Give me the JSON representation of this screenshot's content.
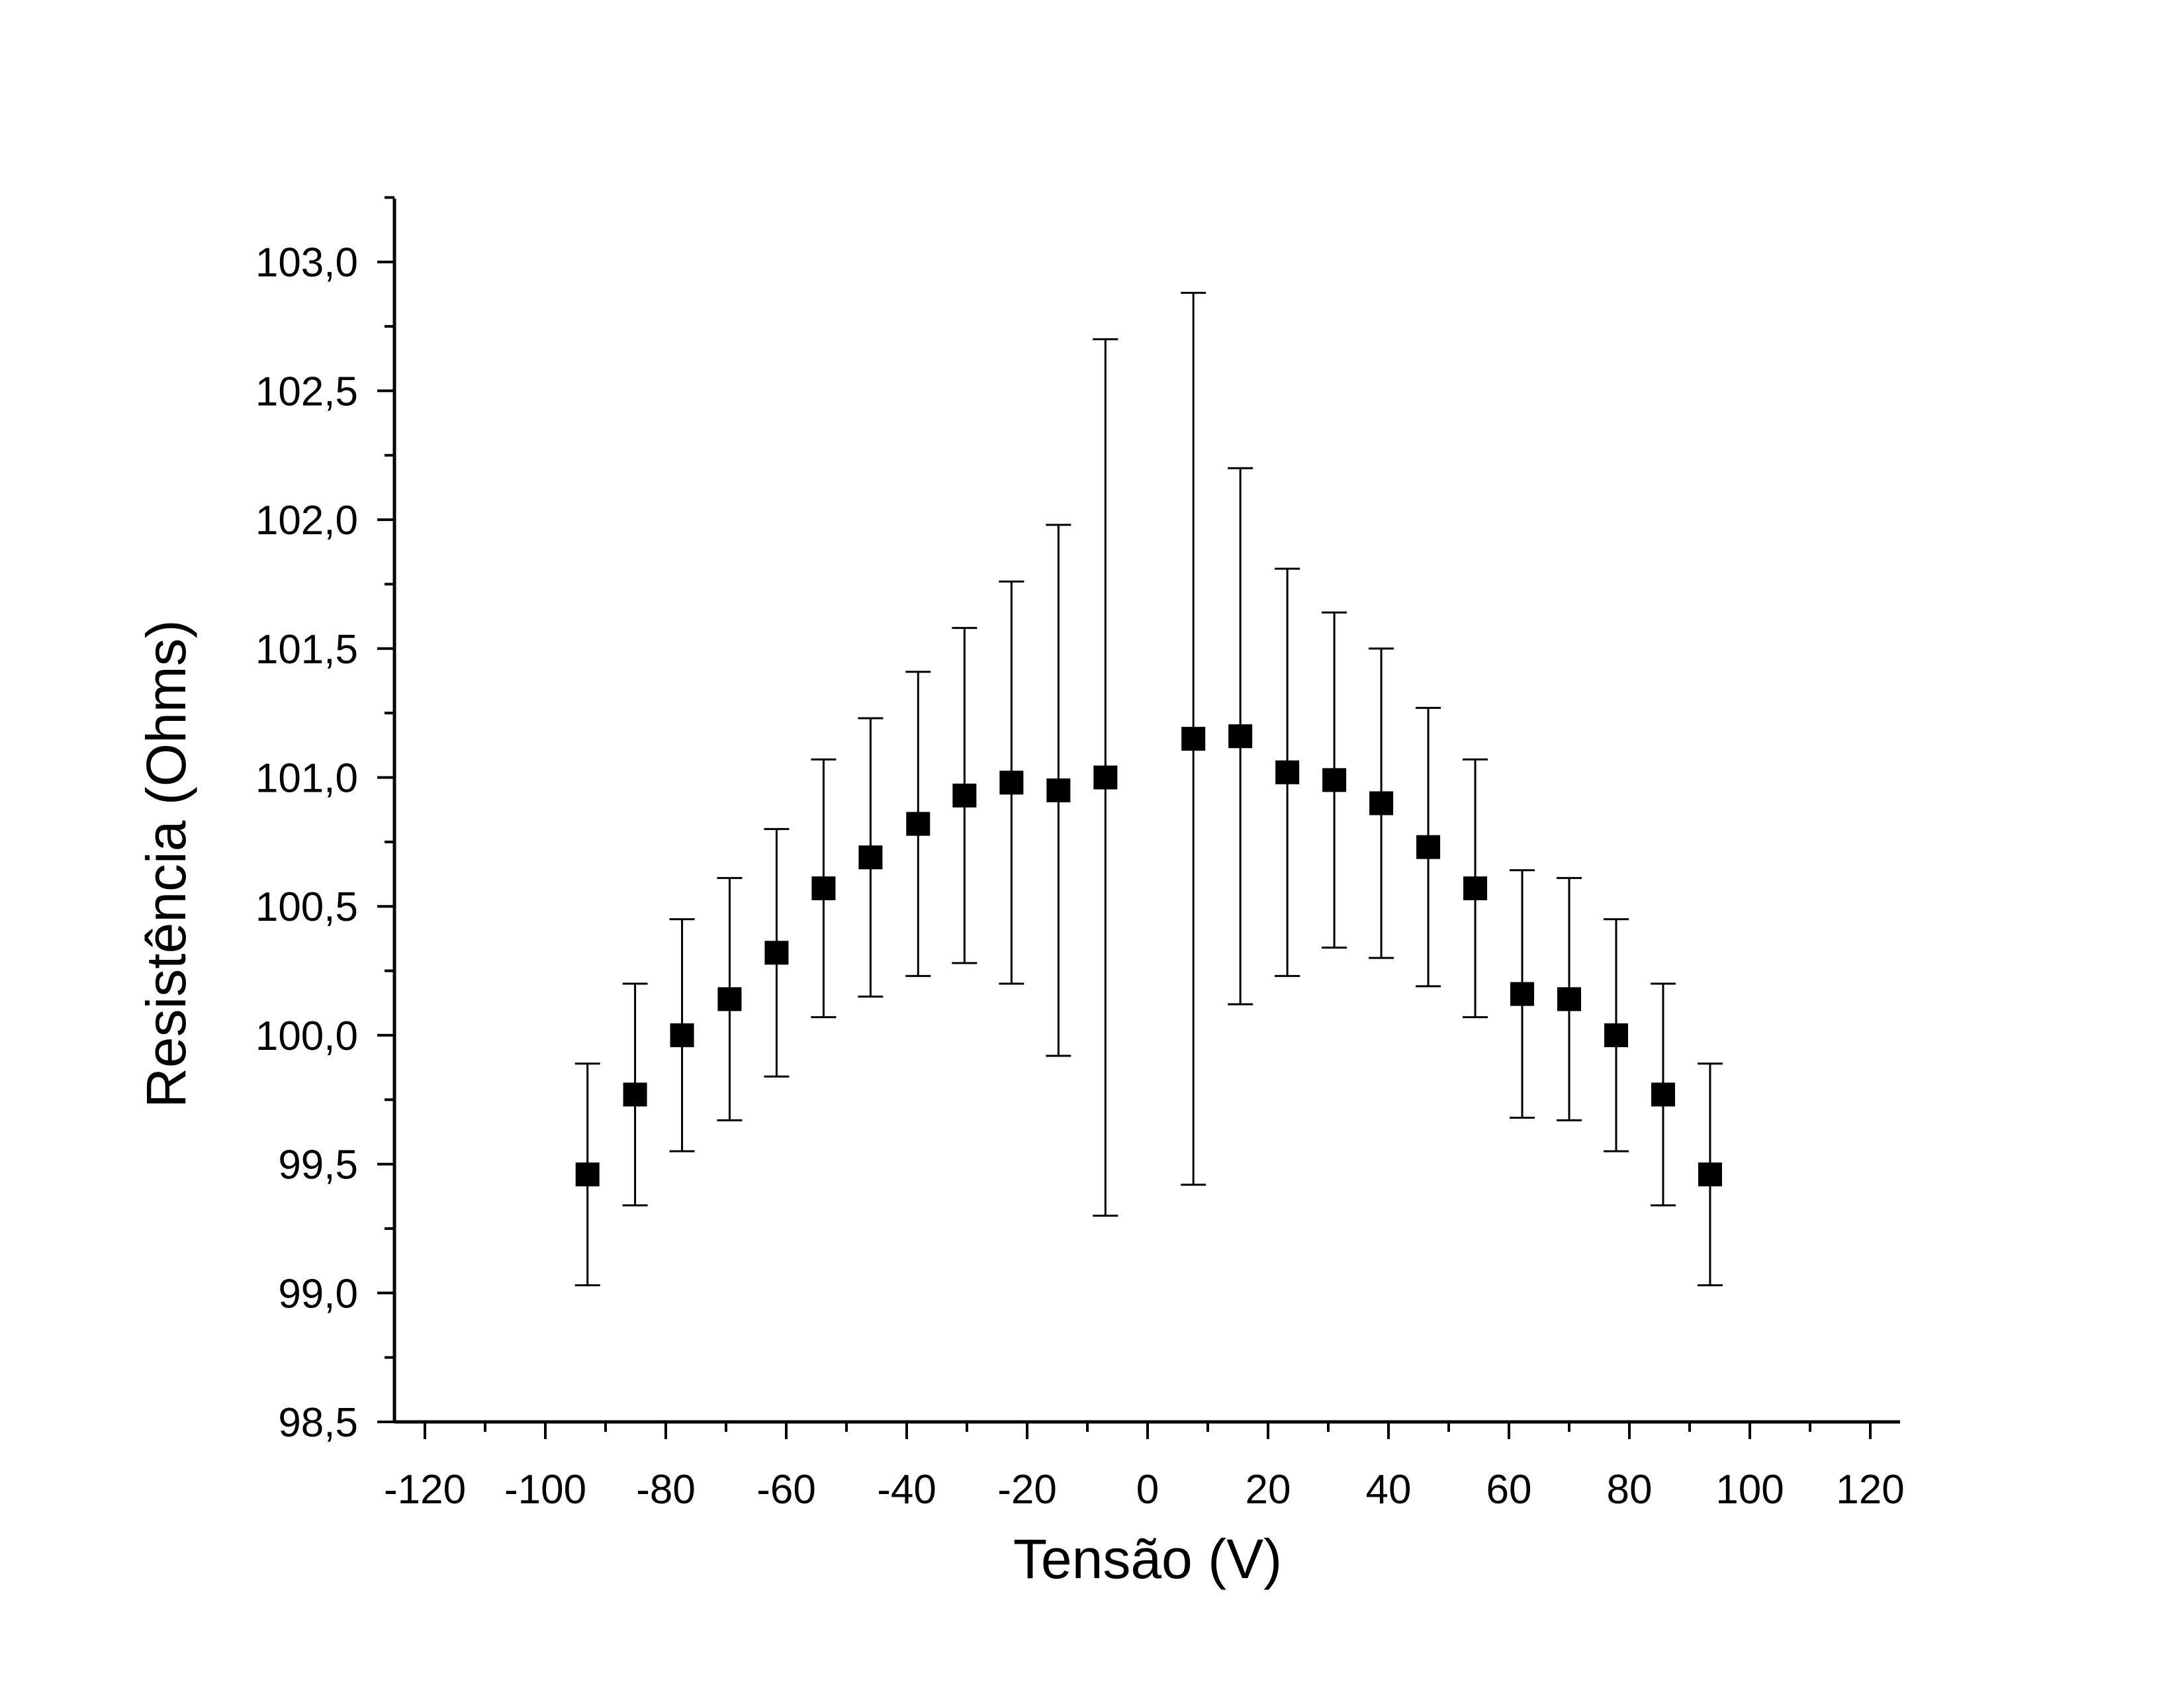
{
  "chart_data": {
    "type": "scatter",
    "xlabel": "Tensão (V)",
    "ylabel": "Resistência (Ohms)",
    "xlim": [
      -125,
      125
    ],
    "ylim": [
      98.5,
      103.25
    ],
    "x_ticks": [
      -120,
      -100,
      -80,
      -60,
      -40,
      -20,
      0,
      20,
      40,
      60,
      80,
      100,
      120
    ],
    "x_tick_labels": [
      "-120",
      "-100",
      "-80",
      "-60",
      "-40",
      "-20",
      "0",
      "20",
      "40",
      "60",
      "80",
      "100",
      "120"
    ],
    "y_ticks": [
      98.5,
      99.0,
      99.5,
      100.0,
      100.5,
      101.0,
      101.5,
      102.0,
      102.5,
      103.0
    ],
    "y_tick_labels": [
      "98,5",
      "99,0",
      "99,5",
      "100,0",
      "100,5",
      "101,0",
      "101,5",
      "102,0",
      "102,5",
      "103,0"
    ],
    "grid": false,
    "marker": "square",
    "color": "#000000",
    "series": [
      {
        "x": [
          -93,
          -85.1,
          -77.3,
          -69.4,
          -61.6,
          -53.8,
          -46,
          -38.1,
          -30.4,
          -22.6,
          -14.8,
          -7,
          7.6,
          15.4,
          23.2,
          31,
          38.8,
          46.6,
          54.4,
          62.2,
          70,
          77.8,
          85.6,
          93.4
        ],
        "y": [
          99.46,
          99.77,
          100.0,
          100.14,
          100.32,
          100.57,
          100.69,
          100.82,
          100.93,
          100.98,
          100.95,
          101.0,
          101.15,
          101.16,
          101.02,
          100.99,
          100.9,
          100.73,
          100.57,
          100.16,
          100.14,
          100.0,
          99.77,
          99.46
        ],
        "y_err": [
          0.43,
          0.43,
          0.45,
          0.47,
          0.48,
          0.5,
          0.54,
          0.59,
          0.65,
          0.78,
          1.03,
          1.7,
          1.73,
          1.04,
          0.79,
          0.65,
          0.6,
          0.54,
          0.5,
          0.48,
          0.47,
          0.45,
          0.43,
          0.43
        ]
      }
    ]
  }
}
